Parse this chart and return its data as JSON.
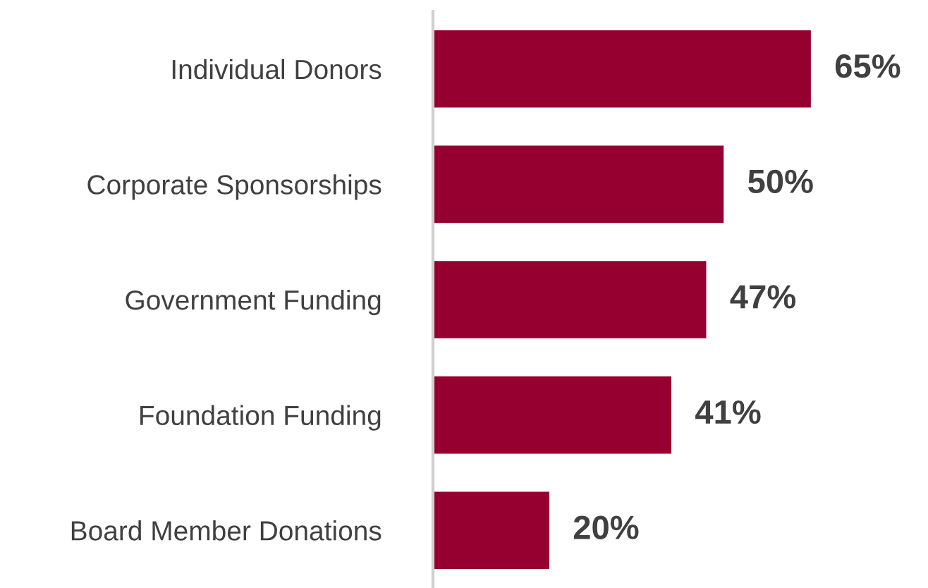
{
  "chart_data": {
    "type": "bar",
    "orientation": "horizontal",
    "categories": [
      "Individual Donors",
      "Corporate Sponsorships",
      "Government Funding",
      "Foundation Funding",
      "Board Member Donations"
    ],
    "values": [
      65,
      50,
      47,
      41,
      20
    ],
    "color": "#960030",
    "value_labels": [
      "65%",
      "50%",
      "47%",
      "41%",
      "20%"
    ],
    "tick_labels": "y",
    "grid": false
  }
}
